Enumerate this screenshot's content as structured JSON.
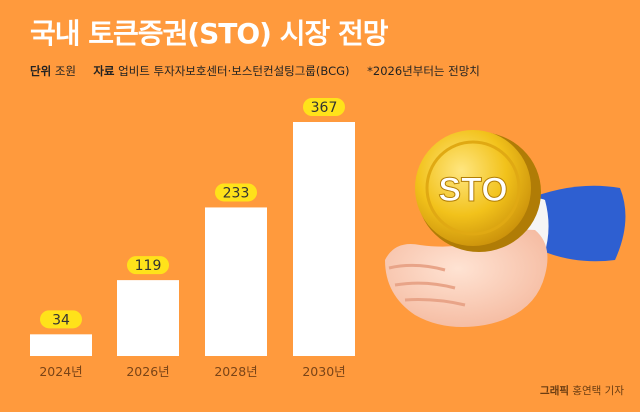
{
  "header": {
    "title": "국내 토큰증권(STO) 시장 전망",
    "unit_label": "단위",
    "unit_value": "조원",
    "source_label": "자료",
    "source_value": "업비트 투자자보호센터·보스턴컨설팅그룹(BCG)",
    "note": "*2026년부터는 전망치"
  },
  "chart_data": {
    "type": "bar",
    "categories": [
      "2024년",
      "2026년",
      "2028년",
      "2030년"
    ],
    "values": [
      34,
      119,
      233,
      367
    ],
    "ylim": [
      0,
      367
    ],
    "grid": false,
    "bar_color": "#FFFFFF",
    "label_badge_color": "#FFE21A"
  },
  "illustration": {
    "coin_label": "STO",
    "icon_name": "hand-holding-coin-icon"
  },
  "credit": {
    "label": "그래픽",
    "author": "홍연택 기자"
  },
  "colors": {
    "background": "#FF9A3D",
    "title": "#FFFFFF",
    "coin": "#F2C21B"
  }
}
